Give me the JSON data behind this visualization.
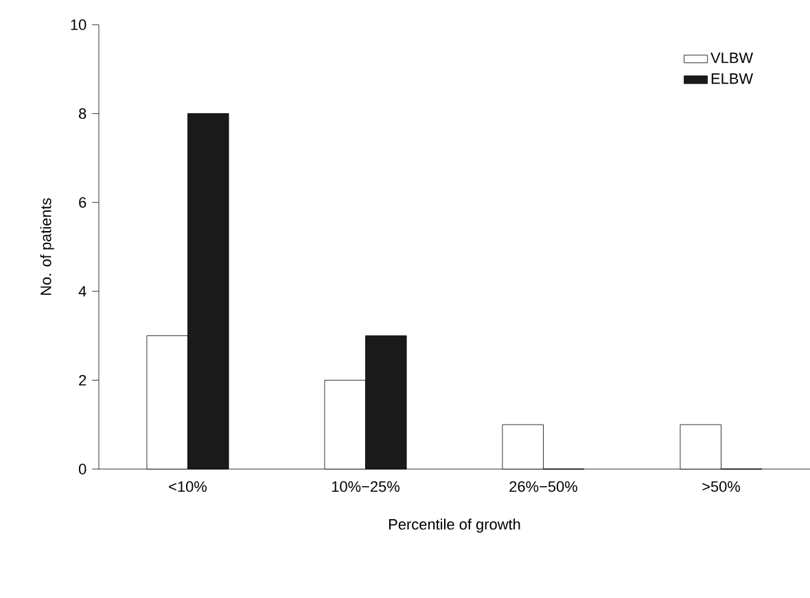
{
  "chart_data": {
    "type": "bar",
    "xlabel": "Percentile of growth",
    "ylabel": "No. of patients",
    "categories": [
      "<10%",
      "10%−25%",
      "26%−50%",
      ">50%"
    ],
    "series": [
      {
        "name": "VLBW",
        "color": "#ffffff",
        "values": [
          3,
          2,
          1,
          1
        ]
      },
      {
        "name": "ELBW",
        "color": "#1a1a1a",
        "values": [
          8,
          3,
          0,
          0
        ]
      }
    ],
    "ylim": [
      0,
      10
    ],
    "yticks": [
      0,
      2,
      4,
      6,
      8,
      10
    ],
    "legend": "top right"
  }
}
